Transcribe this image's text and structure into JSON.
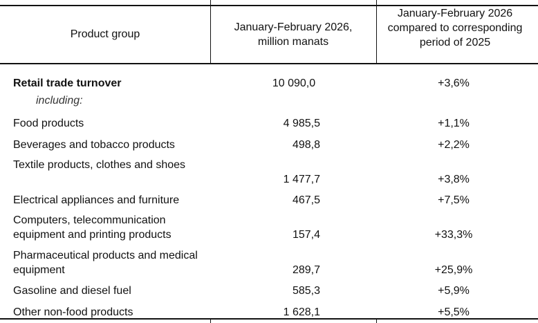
{
  "headers": {
    "product_group": "Product group",
    "value": "January-February 2026, million manats",
    "change": "January-February 2026 compared to corresponding period of 2025"
  },
  "total": {
    "label": "Retail trade turnover",
    "value": "10 090,0",
    "change": "+3,6%"
  },
  "including_label": "including:",
  "rows": [
    {
      "label": "Food products",
      "value": "4 985,5",
      "change": "+1,1%"
    },
    {
      "label": "Beverages and tobacco products",
      "value": "498,8",
      "change": "+2,2%"
    },
    {
      "label": "Textile products, clothes and shoes",
      "value": "1 477,7",
      "change": "+3,8%"
    },
    {
      "label": "Electrical appliances and furniture",
      "value": "467,5",
      "change": "+7,5%"
    },
    {
      "label": "Computers, telecommunication equipment and printing products",
      "value": "157,4",
      "change": "+33,3%"
    },
    {
      "label": "Pharmaceutical products and medical equipment",
      "value": "289,7",
      "change": "+25,9%"
    },
    {
      "label": "Gasoline and diesel fuel",
      "value": "585,3",
      "change": "+5,9%"
    },
    {
      "label": "Other non-food products",
      "value": "1 628,1",
      "change": "+5,5%"
    }
  ]
}
